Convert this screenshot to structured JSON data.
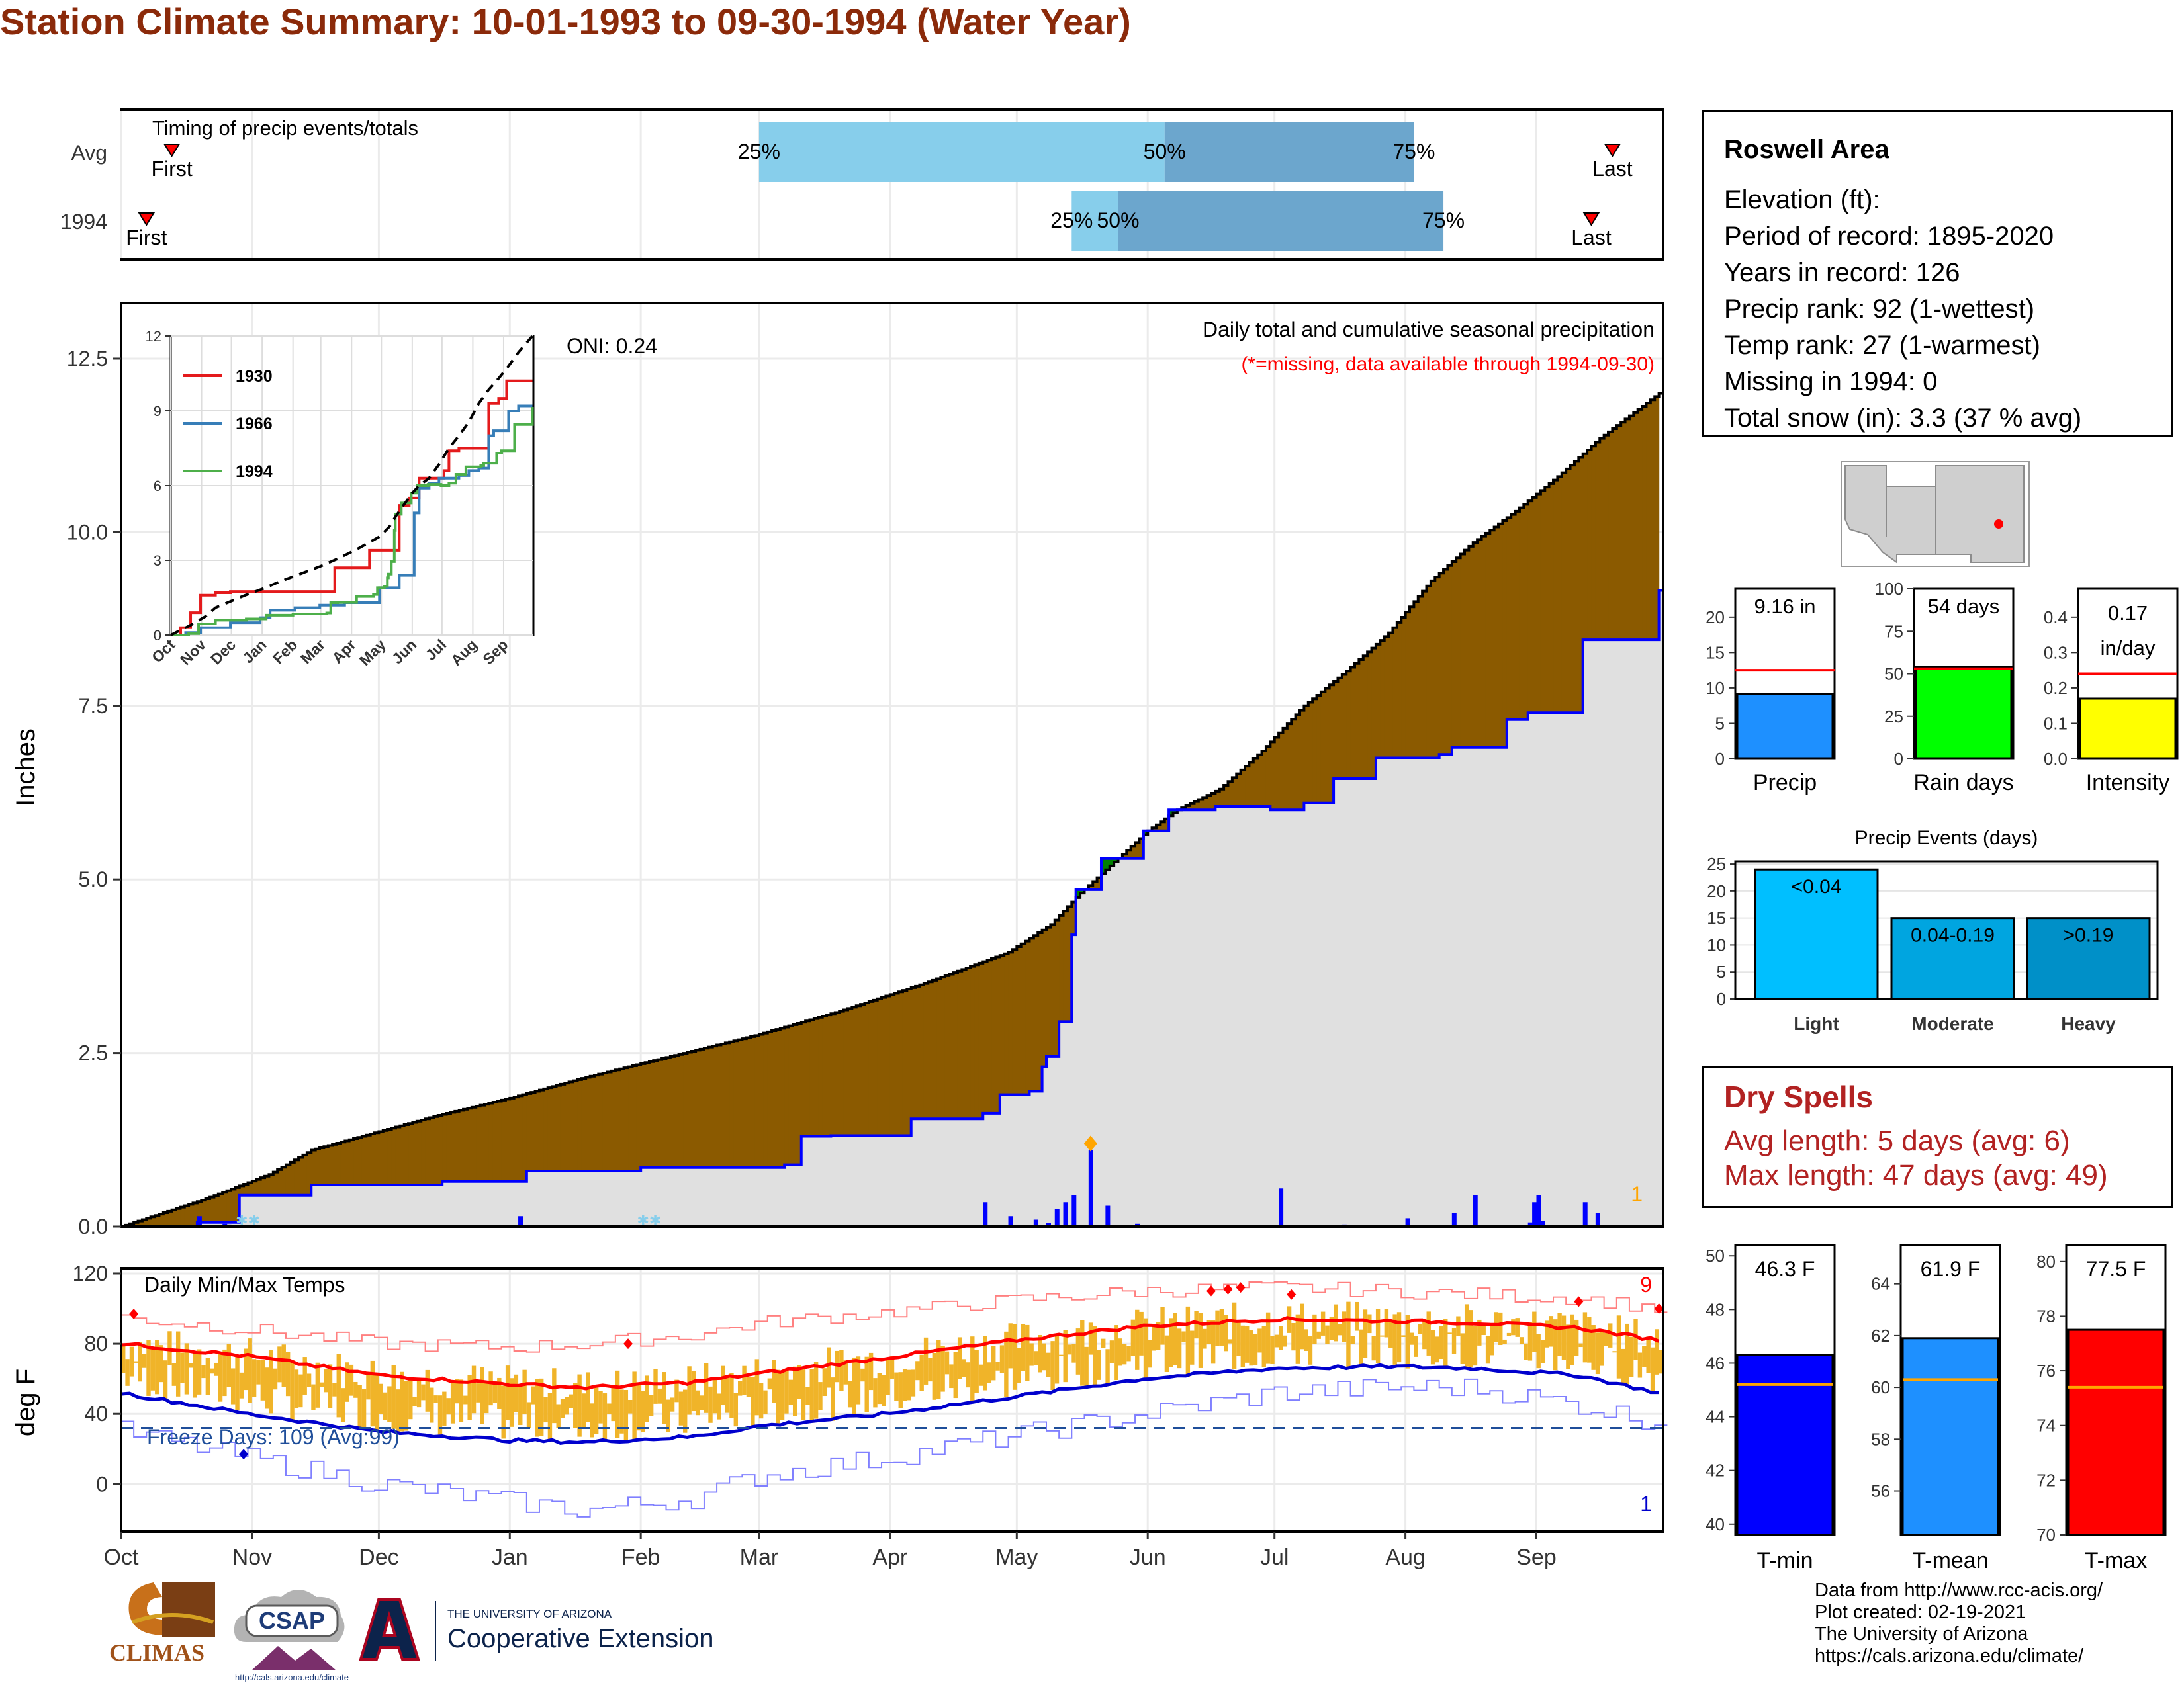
{
  "title": "Station Climate Summary: 10-01-1993 to 09-30-1994 (Water Year)",
  "timing": {
    "label": "Timing of precip events/totals",
    "rows": [
      {
        "name": "Avg",
        "first_label": "First",
        "last_label": "Last",
        "first_day": 12,
        "last_day": 353,
        "p25_day": 151,
        "p50_day": 247,
        "p75_day": 306,
        "p25_label": "25%",
        "p50_label": "50%",
        "p75_label": "75%"
      },
      {
        "name": "1994",
        "first_label": "First",
        "last_label": "Last",
        "first_day": 6,
        "last_day": 348,
        "p25_day": 225,
        "p50_day": 236,
        "p75_day": 313,
        "p25_label": "25%",
        "p50_label": "50%",
        "p75_label": "75%"
      }
    ],
    "colors": {
      "light": "#87CEEB",
      "dark": "#6CA6CD",
      "marker": "#FF0000"
    }
  },
  "precip_panel": {
    "y_axis_label": "Inches",
    "oni": "ONI: 0.24",
    "subtitle": "Daily total and cumulative seasonal precipitation",
    "missing_note": "(*=missing, data available through 1994-09-30)",
    "corner_count": "1",
    "colors": {
      "deficit": "#8B5A00",
      "surplus": "#008000",
      "observed_fill": "#E0E0E0",
      "observed_line": "#0000FF",
      "normal_line": "#000000"
    }
  },
  "temp_panel": {
    "title": "Daily Min/Max Temps",
    "y_axis_label": "deg F",
    "freeze_text": "Freeze Days: 109 (Avg:99)",
    "max_record_count": "9",
    "min_record_count": "1",
    "colors": {
      "range_bar": "#F0B429",
      "avg_max": "#FF0000",
      "avg_min": "#0000CD",
      "record_max": "#FF8080",
      "record_min": "#8080FF"
    }
  },
  "months": [
    "Oct",
    "Nov",
    "Dec",
    "Jan",
    "Feb",
    "Mar",
    "Apr",
    "May",
    "Jun",
    "Jul",
    "Aug",
    "Sep"
  ],
  "station_info": {
    "name": "Roswell Area",
    "lines": [
      "Elevation (ft):",
      "Period of record: 1895-2020",
      "Years in record: 126",
      "Precip rank: 92 (1-wettest)",
      "Temp rank: 27 (1-warmest)",
      "Missing in 1994: 0",
      "Total snow (in): 3.3 (37 % avg)"
    ]
  },
  "summary_bars": [
    {
      "label": "Precip",
      "text": "9.16 in",
      "value": 9.16,
      "avg": 12.5,
      "ymax": 24,
      "ticks": [
        0,
        5,
        10,
        15,
        20
      ],
      "color": "#1E90FF"
    },
    {
      "label": "Rain days",
      "text": "54 days",
      "value": 54,
      "avg": 53,
      "ymax": 100,
      "ticks": [
        0,
        25,
        50,
        75,
        100
      ],
      "color": "#00FF00"
    },
    {
      "label": "Intensity",
      "text": "0.17 in/day",
      "value": 0.17,
      "avg": 0.24,
      "ymax": 0.48,
      "ticks": [
        0.0,
        0.1,
        0.2,
        0.3,
        0.4
      ],
      "color": "#FFFF00"
    }
  ],
  "precip_events": {
    "title": "Precip Events (days)",
    "ticks": [
      0,
      5,
      10,
      15,
      20,
      25
    ],
    "categories": [
      {
        "name": "Light",
        "range": "<0.04",
        "value": 24,
        "color": "#00BFFF"
      },
      {
        "name": "Moderate",
        "range": "0.04-0.19",
        "value": 15,
        "color": "#00A5E0"
      },
      {
        "name": "Heavy",
        "range": ">0.19",
        "value": 15,
        "color": "#0090C8"
      }
    ]
  },
  "dry_spells": {
    "title": "Dry Spells",
    "avg_length": "Avg length: 5 days (avg: 6)",
    "max_length": "Max length: 47 days (avg: 49)"
  },
  "temp_bars": [
    {
      "label": "T-min",
      "text": "46.3 F",
      "value": 46.3,
      "avg": 45.2,
      "ymin": 39.6,
      "ymax": 50.4,
      "ticks": [
        40,
        42,
        44,
        46,
        48,
        50
      ],
      "color": "#0000FF"
    },
    {
      "label": "T-mean",
      "text": "61.9 F",
      "value": 61.9,
      "avg": 60.3,
      "ymin": 54.3,
      "ymax": 65.5,
      "ticks": [
        56,
        58,
        60,
        62,
        64
      ],
      "color": "#1E90FF"
    },
    {
      "label": "T-max",
      "text": "77.5 F",
      "value": 77.5,
      "avg": 75.4,
      "ymin": 70.0,
      "ymax": 80.6,
      "ticks": [
        70,
        72,
        74,
        76,
        78,
        80
      ],
      "color": "#FF0000"
    }
  ],
  "credits": [
    "Data from http://www.rcc-acis.org/",
    "Plot created: 02-19-2021",
    "The University of Arizona",
    "https://cals.arizona.edu/climate/"
  ],
  "logos": {
    "climas": "CLIMAS",
    "csap": "CSAP",
    "csap_url": "http://cals.arizona.edu/climate",
    "ua_small": "THE UNIVERSITY OF ARIZONA",
    "ua_big": "Cooperative Extension"
  },
  "chart_data": [
    {
      "type": "area",
      "title": "Daily total and cumulative seasonal precipitation",
      "ylabel": "Inches",
      "ylim": [
        0,
        13.3
      ],
      "yticks": [
        0.0,
        2.5,
        5.0,
        7.5,
        10.0,
        12.5
      ],
      "x_unit": "day of water year (0 = Oct 1)",
      "series": [
        {
          "name": "normal cumulative",
          "x": [
            0,
            20,
            35,
            45,
            60,
            75,
            92,
            110,
            130,
            150,
            170,
            190,
            210,
            220,
            227,
            235,
            243,
            250,
            260,
            270,
            280,
            290,
            300,
            310,
            320,
            330,
            340,
            350,
            364
          ],
          "values": [
            0.0,
            0.4,
            0.75,
            1.1,
            1.35,
            1.6,
            1.85,
            2.15,
            2.45,
            2.75,
            3.1,
            3.5,
            3.95,
            4.35,
            4.8,
            5.25,
            5.7,
            6.0,
            6.3,
            6.85,
            7.5,
            8.0,
            8.55,
            9.3,
            9.85,
            10.3,
            10.8,
            11.35,
            12.0
          ]
        },
        {
          "name": "observed cumulative",
          "x": [
            0,
            18,
            28,
            45,
            76,
            96,
            123,
            157,
            161,
            168,
            187,
            204,
            208,
            215,
            218,
            219,
            222,
            225,
            226,
            232,
            242,
            248,
            259,
            272,
            280,
            287,
            297,
            312,
            315,
            328,
            333,
            346,
            364
          ],
          "values": [
            0.0,
            0.06,
            0.45,
            0.6,
            0.65,
            0.8,
            0.85,
            0.89,
            1.3,
            1.31,
            1.55,
            1.63,
            1.9,
            1.95,
            2.3,
            2.45,
            2.95,
            4.2,
            4.85,
            5.3,
            5.7,
            6.0,
            6.05,
            6.0,
            6.1,
            6.45,
            6.75,
            6.8,
            6.9,
            7.3,
            7.4,
            8.45,
            9.16
          ]
        },
        {
          "name": "daily precip",
          "x": [
            18,
            24,
            25,
            72,
            94,
            112,
            157,
            176,
            177,
            178,
            204,
            210,
            216,
            219,
            221,
            223,
            225,
            229,
            233,
            240,
            274,
            289,
            298,
            304,
            315,
            320,
            333,
            334,
            335,
            336,
            346,
            349
          ],
          "values": [
            0.15,
            0.04,
            0.03,
            0.01,
            0.15,
            0.02,
            0.01,
            0.01,
            0.01,
            0.01,
            0.35,
            0.15,
            0.1,
            0.05,
            0.25,
            0.35,
            0.45,
            1.1,
            0.3,
            0.04,
            0.55,
            0.03,
            0.02,
            0.12,
            0.2,
            0.45,
            0.06,
            0.35,
            0.45,
            0.08,
            0.35,
            0.2
          ]
        }
      ]
    },
    {
      "type": "line",
      "title": "",
      "ylim": [
        0,
        12
      ],
      "yticks": [
        0,
        3,
        6,
        9,
        12
      ],
      "categories": [
        "Oct",
        "Nov",
        "Dec",
        "Jan",
        "Feb",
        "Mar",
        "Apr",
        "May",
        "Jun",
        "Jul",
        "Aug",
        "Sep"
      ],
      "series": [
        {
          "name": "1930",
          "color": "#E41A1C",
          "x": [
            0,
            10,
            20,
            30,
            45,
            60,
            75,
            90,
            120,
            150,
            165,
            170,
            190,
            200,
            215,
            230,
            240,
            250,
            260,
            275,
            280,
            290,
            300,
            320,
            330,
            338,
            350,
            364
          ],
          "values": [
            0,
            0.3,
            0.9,
            1.6,
            1.7,
            1.75,
            1.75,
            1.75,
            1.75,
            1.75,
            2.7,
            2.7,
            2.7,
            3.4,
            3.4,
            5.2,
            5.5,
            6.3,
            6.3,
            6.6,
            7.4,
            7.5,
            7.5,
            9.3,
            9.5,
            10.2,
            10.2,
            10.2
          ]
        },
        {
          "name": "1966",
          "color": "#377EB8",
          "x": [
            0,
            15,
            30,
            60,
            90,
            100,
            125,
            150,
            175,
            200,
            210,
            230,
            245,
            250,
            260,
            270,
            290,
            300,
            310,
            320,
            325,
            340,
            350,
            364
          ],
          "values": [
            0,
            0.1,
            0.3,
            0.5,
            0.7,
            1.0,
            1.1,
            1.2,
            1.3,
            1.3,
            1.9,
            2.4,
            4.9,
            5.9,
            6.1,
            6.3,
            6.4,
            6.6,
            6.7,
            8.0,
            8.2,
            9.0,
            9.2,
            9.2
          ]
        },
        {
          "name": "1994",
          "color": "#4DAF4A",
          "x": [
            0,
            18,
            28,
            45,
            76,
            96,
            123,
            157,
            161,
            168,
            187,
            204,
            208,
            215,
            218,
            219,
            222,
            225,
            226,
            232,
            242,
            248,
            259,
            272,
            280,
            287,
            297,
            312,
            315,
            328,
            333,
            346,
            364
          ],
          "values": [
            0.0,
            0.06,
            0.45,
            0.6,
            0.65,
            0.8,
            0.85,
            0.89,
            1.3,
            1.31,
            1.55,
            1.63,
            1.9,
            1.95,
            2.3,
            2.45,
            2.95,
            4.2,
            4.85,
            5.3,
            5.7,
            6.0,
            6.05,
            6.0,
            6.1,
            6.45,
            6.75,
            6.8,
            6.9,
            7.3,
            7.4,
            8.45,
            9.16
          ]
        },
        {
          "name": "normal",
          "color": "#000000",
          "dashed": true,
          "x": [
            0,
            20,
            35,
            45,
            60,
            75,
            92,
            110,
            130,
            150,
            170,
            190,
            210,
            220,
            227,
            235,
            243,
            250,
            260,
            270,
            280,
            290,
            300,
            310,
            320,
            330,
            340,
            350,
            364
          ],
          "values": [
            0.0,
            0.4,
            0.75,
            1.1,
            1.35,
            1.6,
            1.85,
            2.15,
            2.45,
            2.75,
            3.1,
            3.5,
            3.95,
            4.35,
            4.8,
            5.25,
            5.7,
            6.0,
            6.3,
            6.85,
            7.5,
            8.0,
            8.55,
            9.3,
            9.85,
            10.3,
            10.8,
            11.35,
            12.0
          ]
        }
      ]
    },
    {
      "type": "line",
      "title": "Daily Min/Max Temps",
      "ylabel": "deg F",
      "ylim": [
        -27,
        123
      ],
      "yticks": [
        0,
        40,
        80,
        120
      ],
      "freeze_line": 32,
      "categories": [
        "Oct",
        "Nov",
        "Dec",
        "Jan",
        "Feb",
        "Mar",
        "Apr",
        "May",
        "Jun",
        "Jul",
        "Aug",
        "Sep"
      ],
      "series": [
        {
          "name": "avg max",
          "x": [
            0,
            30,
            61,
            92,
            110,
            135,
            151,
            181,
            212,
            242,
            273,
            300,
            320,
            345,
            364
          ],
          "values": [
            80,
            73,
            62,
            57,
            55,
            58,
            63,
            72,
            82,
            90,
            94,
            93,
            92,
            89,
            82
          ]
        },
        {
          "name": "avg min",
          "x": [
            0,
            30,
            61,
            92,
            110,
            135,
            151,
            181,
            212,
            242,
            273,
            300,
            320,
            345,
            364
          ],
          "values": [
            52,
            40,
            30,
            25,
            24,
            27,
            33,
            40,
            50,
            60,
            66,
            67,
            66,
            62,
            52
          ]
        },
        {
          "name": "record max",
          "x": [
            0,
            30,
            61,
            92,
            110,
            135,
            151,
            181,
            212,
            242,
            273,
            300,
            320,
            345,
            364
          ],
          "values": [
            95,
            88,
            80,
            78,
            80,
            85,
            92,
            98,
            105,
            110,
            112,
            110,
            108,
            106,
            100
          ]
        },
        {
          "name": "record min",
          "x": [
            0,
            30,
            61,
            92,
            110,
            135,
            151,
            181,
            212,
            242,
            273,
            300,
            320,
            345,
            364
          ],
          "values": [
            30,
            15,
            0,
            -10,
            -15,
            -8,
            5,
            15,
            28,
            40,
            52,
            55,
            55,
            45,
            35
          ]
        }
      ]
    }
  ]
}
